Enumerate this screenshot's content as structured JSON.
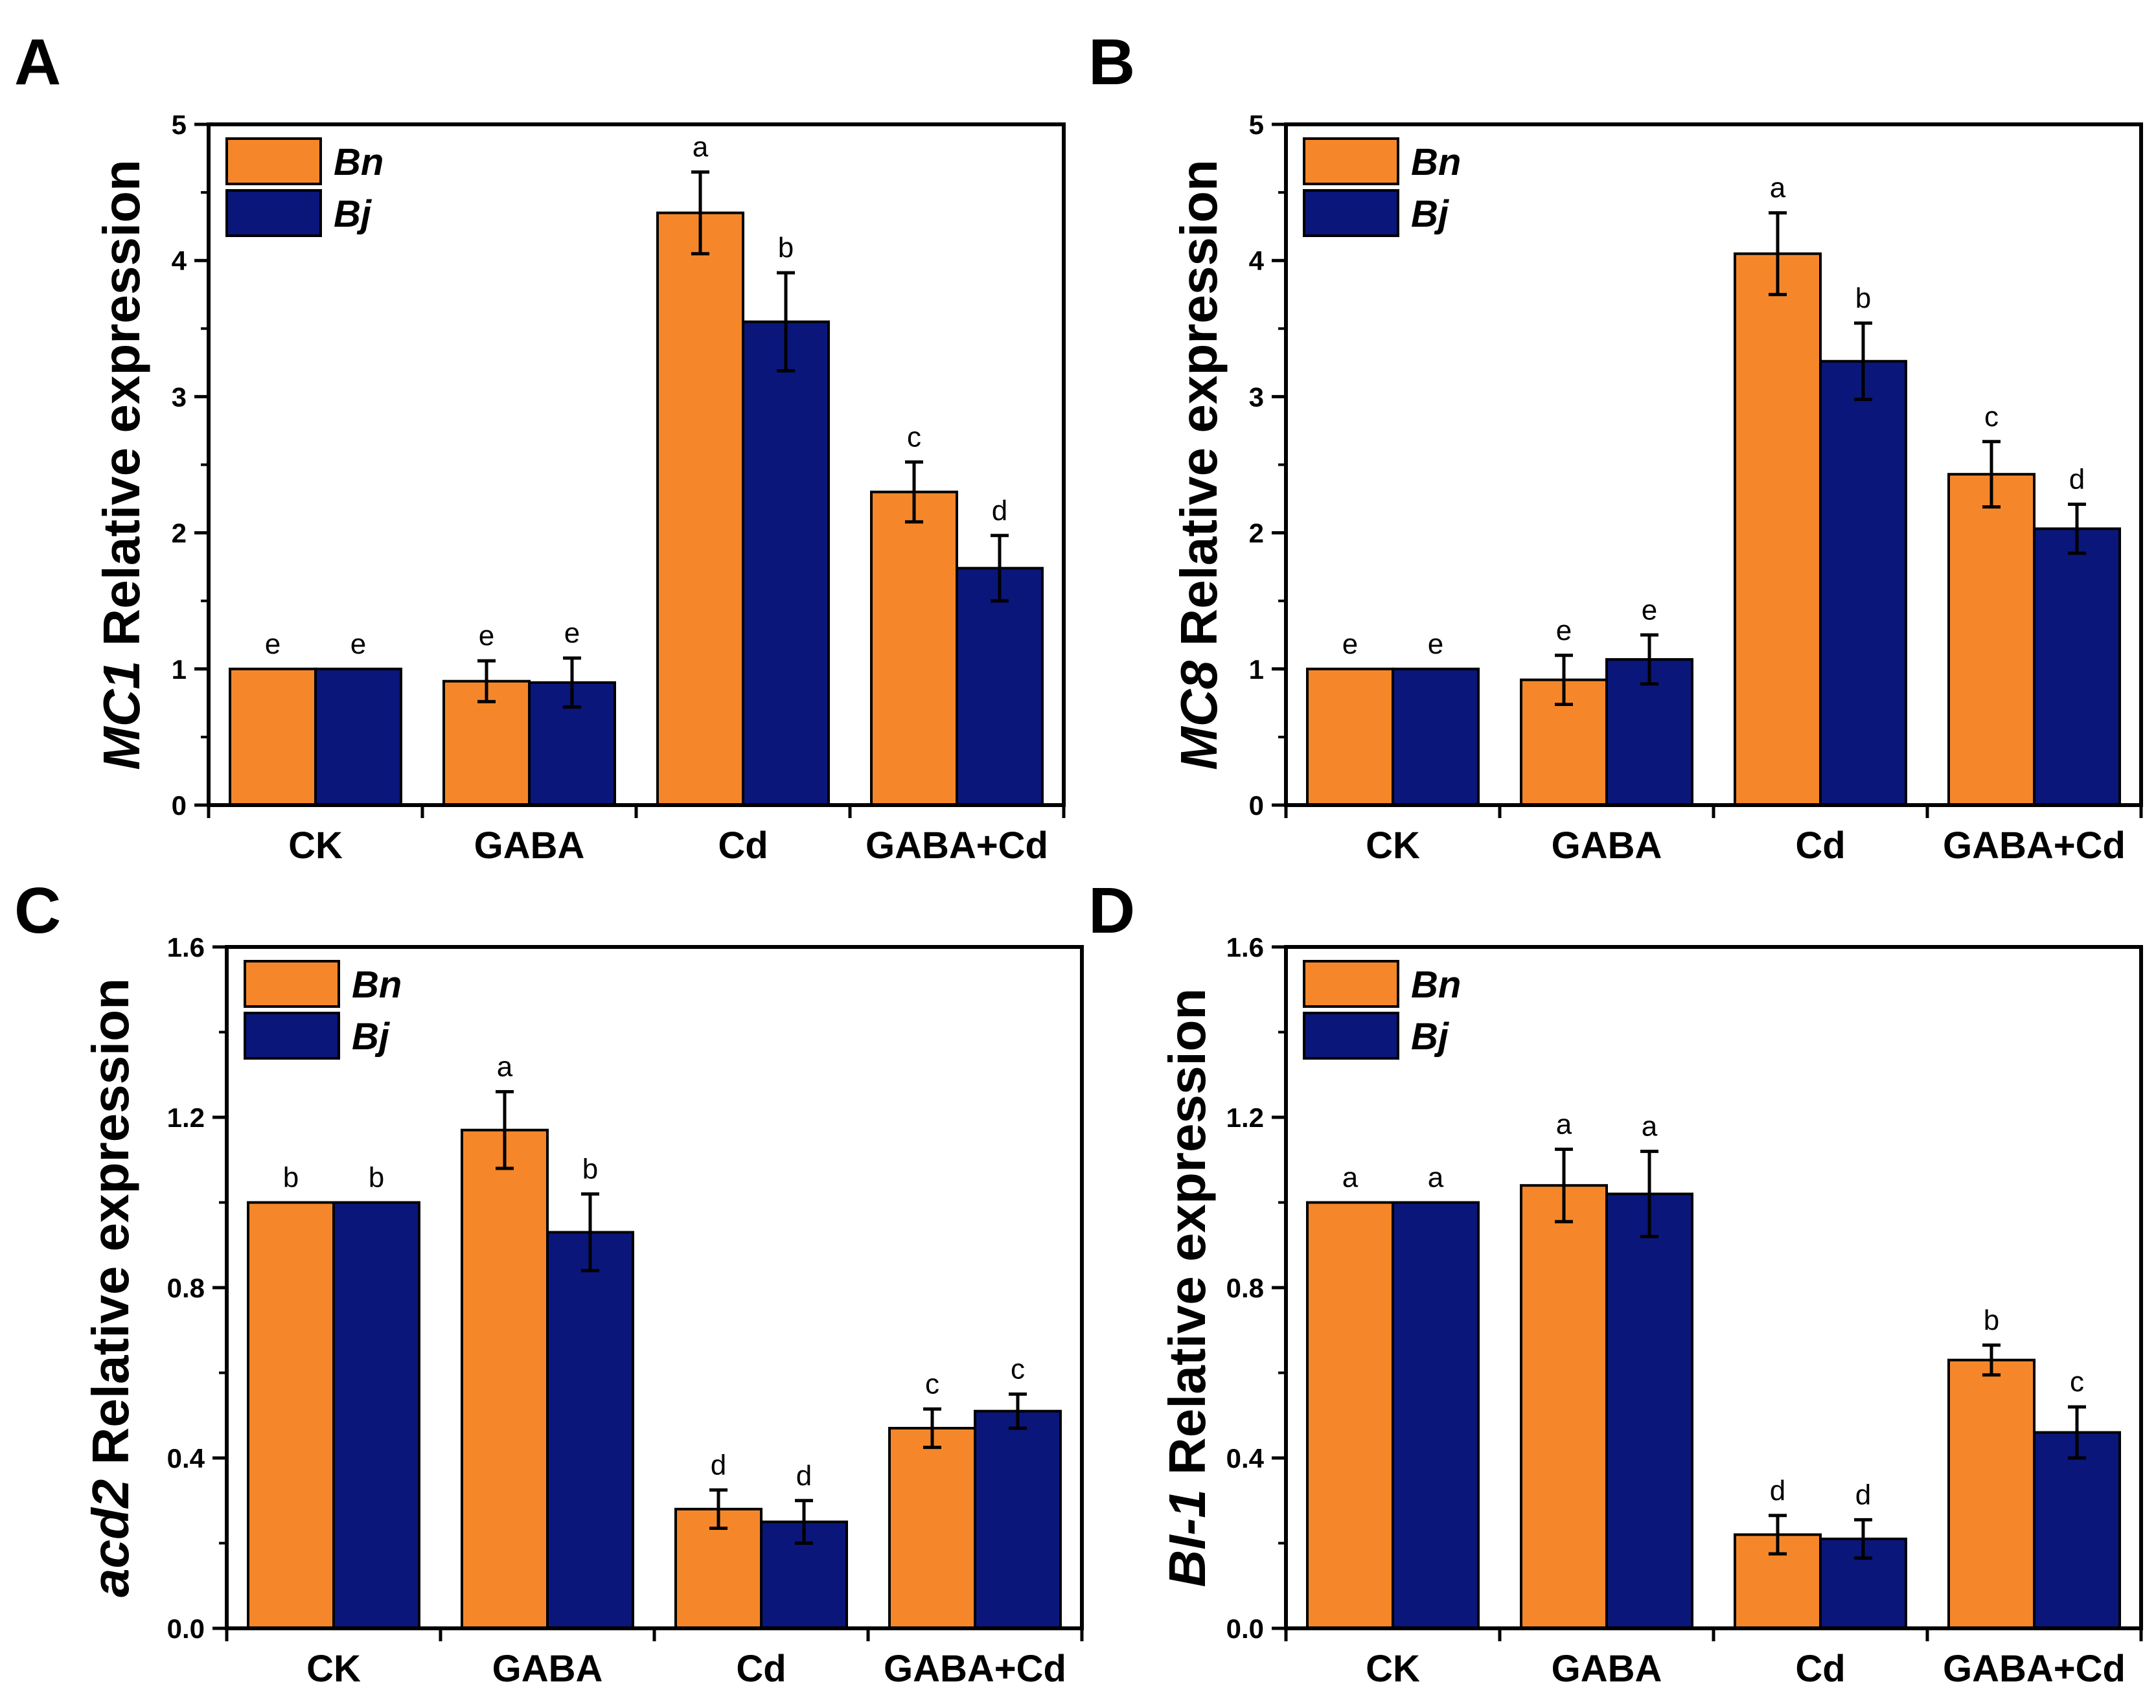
{
  "chart_data": [
    {
      "type": "bar",
      "panel": "A",
      "gene": "MC1",
      "ylabel": "Relative expression",
      "categories": [
        "CK",
        "GABA",
        "Cd",
        "GABA+Cd"
      ],
      "ylim": [
        0,
        5
      ],
      "yticks": [
        "0",
        "1",
        "2",
        "3",
        "4",
        "5"
      ],
      "series": [
        {
          "name": "Bn",
          "color": "#F5872A",
          "values": [
            1.0,
            0.91,
            4.35,
            2.3
          ],
          "errors": [
            0,
            0.15,
            0.3,
            0.22
          ],
          "letters": [
            "e",
            "e",
            "a",
            "c"
          ]
        },
        {
          "name": "Bj",
          "color": "#0A167A",
          "values": [
            1.0,
            0.9,
            3.55,
            1.74
          ],
          "errors": [
            0,
            0.18,
            0.36,
            0.24
          ],
          "letters": [
            "e",
            "e",
            "b",
            "d"
          ]
        }
      ]
    },
    {
      "type": "bar",
      "panel": "B",
      "gene": "MC8",
      "ylabel": "Relative expression",
      "categories": [
        "CK",
        "GABA",
        "Cd",
        "GABA+Cd"
      ],
      "ylim": [
        0,
        5
      ],
      "yticks": [
        "0",
        "1",
        "2",
        "3",
        "4",
        "5"
      ],
      "series": [
        {
          "name": "Bn",
          "color": "#F5872A",
          "values": [
            1.0,
            0.92,
            4.05,
            2.43
          ],
          "errors": [
            0,
            0.18,
            0.3,
            0.24
          ],
          "letters": [
            "e",
            "e",
            "a",
            "c"
          ]
        },
        {
          "name": "Bj",
          "color": "#0A167A",
          "values": [
            1.0,
            1.07,
            3.26,
            2.03
          ],
          "errors": [
            0,
            0.18,
            0.28,
            0.18
          ],
          "letters": [
            "e",
            "e",
            "b",
            "d"
          ]
        }
      ]
    },
    {
      "type": "bar",
      "panel": "C",
      "gene": "acd2",
      "ylabel": "Relative expression",
      "categories": [
        "CK",
        "GABA",
        "Cd",
        "GABA+Cd"
      ],
      "ylim": [
        0,
        1.6
      ],
      "yticks": [
        "0.0",
        "0.4",
        "0.8",
        "1.2",
        "1.6"
      ],
      "series": [
        {
          "name": "Bn",
          "color": "#F5872A",
          "values": [
            1.0,
            1.17,
            0.28,
            0.47
          ],
          "errors": [
            0,
            0.09,
            0.045,
            0.045
          ],
          "letters": [
            "b",
            "a",
            "d",
            "c"
          ]
        },
        {
          "name": "Bj",
          "color": "#0A167A",
          "values": [
            1.0,
            0.93,
            0.25,
            0.51
          ],
          "errors": [
            0,
            0.09,
            0.05,
            0.04
          ],
          "letters": [
            "b",
            "b",
            "d",
            "c"
          ]
        }
      ]
    },
    {
      "type": "bar",
      "panel": "D",
      "gene": "BI-1",
      "ylabel": "Relative expression",
      "categories": [
        "CK",
        "GABA",
        "Cd",
        "GABA+Cd"
      ],
      "ylim": [
        0,
        1.6
      ],
      "yticks": [
        "0.0",
        "0.4",
        "0.8",
        "1.2",
        "1.6"
      ],
      "series": [
        {
          "name": "Bn",
          "color": "#F5872A",
          "values": [
            1.0,
            1.04,
            0.22,
            0.63
          ],
          "errors": [
            0,
            0.085,
            0.045,
            0.035
          ],
          "letters": [
            "a",
            "a",
            "d",
            "b"
          ]
        },
        {
          "name": "Bj",
          "color": "#0A167A",
          "values": [
            1.0,
            1.02,
            0.21,
            0.46
          ],
          "errors": [
            0,
            0.1,
            0.045,
            0.06
          ],
          "letters": [
            "a",
            "a",
            "d",
            "c"
          ]
        }
      ]
    }
  ]
}
